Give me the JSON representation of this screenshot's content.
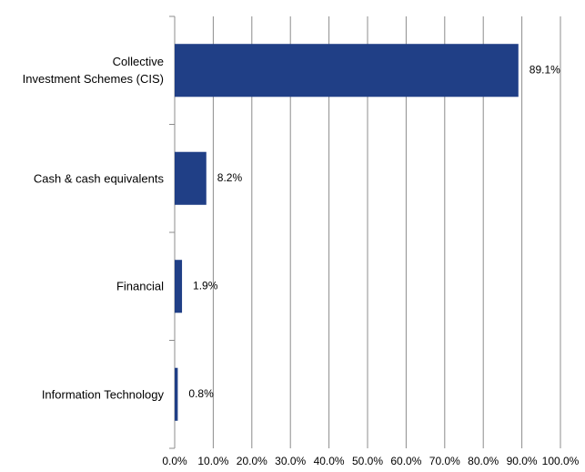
{
  "chart_data": {
    "type": "bar",
    "orientation": "horizontal",
    "categories": [
      "Collective\nInvestment Schemes (CIS)",
      "Cash & cash equivalents",
      "Financial",
      "Information Technology"
    ],
    "values": [
      89.1,
      8.2,
      1.9,
      0.8
    ],
    "value_labels": [
      "89.1%",
      "8.2%",
      "1.9%",
      "0.8%"
    ],
    "color": "#203f86",
    "xlim": [
      0,
      100
    ],
    "xticks": [
      {
        "value": 0,
        "label": "0.0%"
      },
      {
        "value": 10,
        "label": "10.0%"
      },
      {
        "value": 20,
        "label": "20.0%"
      },
      {
        "value": 30,
        "label": "30.0%"
      },
      {
        "value": 40,
        "label": "40.0%"
      },
      {
        "value": 50,
        "label": "50.0%"
      },
      {
        "value": 60,
        "label": "60.0%"
      },
      {
        "value": 70,
        "label": "70.0%"
      },
      {
        "value": 80,
        "label": "80.0%"
      },
      {
        "value": 90,
        "label": "90.0%"
      },
      {
        "value": 100,
        "label": "100.0%"
      }
    ],
    "grid": true
  }
}
